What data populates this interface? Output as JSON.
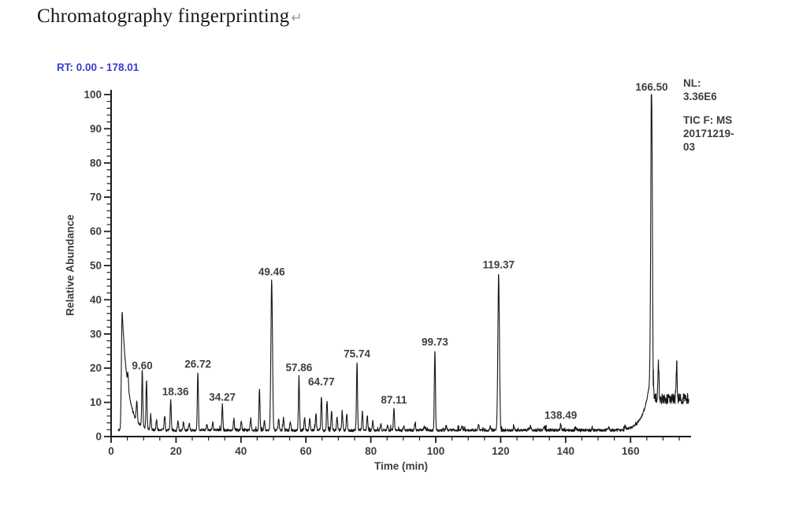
{
  "page": {
    "title": "Chromatography fingerprinting",
    "return_mark": "↵"
  },
  "colors": {
    "trace": "#161616",
    "axis": "#1c1c1c",
    "annotation": "#3a3e46",
    "rt_header": "#3c3bd1",
    "background": "#ffffff"
  },
  "chart_data": {
    "type": "line",
    "header": "RT: 0.00 - 178.01",
    "xlabel": "Time (min)",
    "ylabel": "Relative Abundance",
    "xlim": [
      0,
      178.01
    ],
    "ylim": [
      0,
      100
    ],
    "x_ticks": [
      0,
      20,
      40,
      60,
      80,
      100,
      120,
      140,
      160
    ],
    "x_minor_step": 5,
    "x_minor_max": 175,
    "y_ticks": [
      0,
      10,
      20,
      30,
      40,
      50,
      60,
      70,
      80,
      90,
      100
    ],
    "y_minor_step": 2,
    "grid": "off",
    "legend_position": "top-right",
    "normalization_lines": [
      "NL:",
      "3.36E6"
    ],
    "trace_id_lines": [
      "TIC F:  MS",
      "20171219-",
      "03"
    ],
    "labeled_peaks": [
      {
        "rt": 9.6,
        "ra": 18.5,
        "label": "9.60"
      },
      {
        "rt": 18.36,
        "ra": 11,
        "label": "18.36",
        "label_dx": 6
      },
      {
        "rt": 26.72,
        "ra": 19,
        "label": "26.72"
      },
      {
        "rt": 34.27,
        "ra": 10,
        "label": "34.27",
        "label_dy": 3
      },
      {
        "rt": 49.46,
        "ra": 46,
        "label": "49.46"
      },
      {
        "rt": 57.86,
        "ra": 18,
        "label": "57.86"
      },
      {
        "rt": 64.77,
        "ra": 12,
        "label": "64.77",
        "label_dy": -8
      },
      {
        "rt": 75.74,
        "ra": 22,
        "label": "75.74"
      },
      {
        "rt": 87.11,
        "ra": 8.5,
        "label": "87.11"
      },
      {
        "rt": 99.73,
        "ra": 25.5,
        "label": "99.73"
      },
      {
        "rt": 119.37,
        "ra": 48,
        "label": "119.37"
      },
      {
        "rt": 138.49,
        "ra": 4,
        "label": "138.49"
      },
      {
        "rt": 166.5,
        "ra": 100,
        "label": "166.50"
      }
    ],
    "unlabeled_peaks": [
      [
        5.2,
        6
      ],
      [
        7.9,
        8
      ],
      [
        10.9,
        16
      ],
      [
        12.2,
        6.5
      ],
      [
        14.0,
        5
      ],
      [
        16.5,
        6.5
      ],
      [
        20.6,
        5
      ],
      [
        22.3,
        4.5
      ],
      [
        24.0,
        4
      ],
      [
        29.5,
        4
      ],
      [
        31.3,
        4.5
      ],
      [
        37.8,
        5.5
      ],
      [
        40.1,
        5
      ],
      [
        43.0,
        5.5
      ],
      [
        45.7,
        14.5
      ],
      [
        47.2,
        5
      ],
      [
        51.6,
        5.5
      ],
      [
        53.1,
        6
      ],
      [
        55.2,
        4.5
      ],
      [
        59.6,
        6
      ],
      [
        61.2,
        5.5
      ],
      [
        63.1,
        7
      ],
      [
        66.5,
        11
      ],
      [
        67.9,
        8
      ],
      [
        69.6,
        6
      ],
      [
        71.2,
        7.5
      ],
      [
        72.6,
        7
      ],
      [
        77.4,
        7.5
      ],
      [
        78.9,
        6.5
      ],
      [
        80.6,
        5
      ],
      [
        83.1,
        4
      ],
      [
        85.2,
        3.5
      ],
      [
        90.2,
        3.5
      ],
      [
        93.6,
        4
      ],
      [
        96.5,
        3.3
      ],
      [
        103.2,
        3.5
      ],
      [
        108.1,
        3.4
      ],
      [
        113.2,
        4
      ],
      [
        116.8,
        3.3
      ],
      [
        124.1,
        3.4
      ],
      [
        129.2,
        3.5
      ],
      [
        133.4,
        3.4
      ],
      [
        143.1,
        3
      ],
      [
        148.2,
        3
      ],
      [
        153.3,
        3
      ],
      [
        158.3,
        3.2
      ],
      [
        168.6,
        22
      ],
      [
        174.2,
        22.8
      ]
    ],
    "solvent_front": {
      "rt": 3.4,
      "ra": 37,
      "decay_tau": 1.8
    },
    "baseline_ra": 2.2,
    "end_rise_start": 158,
    "end_plateau": {
      "from": 167.0,
      "ra": 12,
      "noise": 1.6
    },
    "trace_start": 2.2,
    "trace_end": 178
  }
}
